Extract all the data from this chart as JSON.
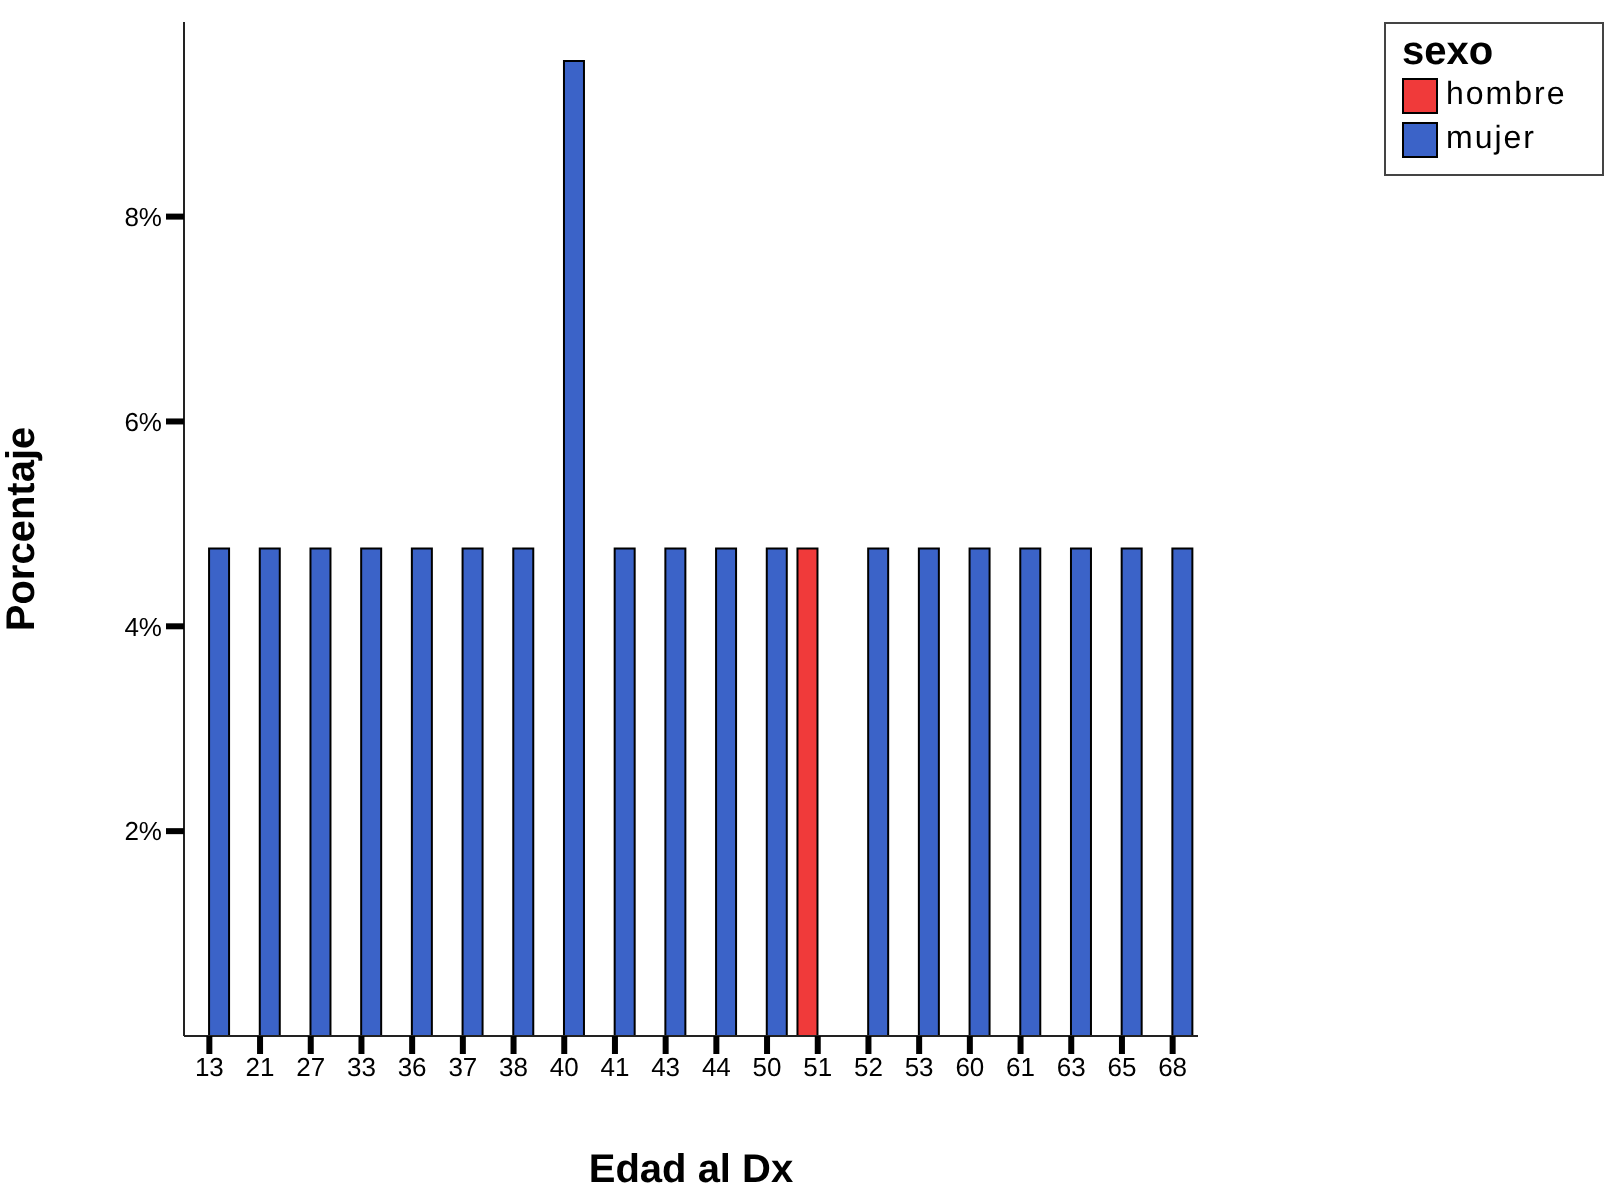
{
  "chart_data": {
    "type": "bar",
    "xlabel": "Edad al Dx",
    "ylabel": "Porcentaje",
    "legend_title": "sexo",
    "legend": "top right",
    "grid": false,
    "categories": [
      "13",
      "21",
      "27",
      "33",
      "36",
      "37",
      "38",
      "40",
      "41",
      "43",
      "44",
      "50",
      "51",
      "52",
      "53",
      "60",
      "61",
      "63",
      "65",
      "68"
    ],
    "series": [
      {
        "name": "hombre",
        "color": "#f03a3a",
        "values": [
          null,
          null,
          null,
          null,
          null,
          null,
          null,
          null,
          null,
          null,
          null,
          null,
          4.76,
          null,
          null,
          null,
          null,
          null,
          null,
          null
        ]
      },
      {
        "name": "mujer",
        "color": "#3b63c8",
        "values": [
          4.76,
          4.76,
          4.76,
          4.76,
          4.76,
          4.76,
          4.76,
          9.52,
          4.76,
          4.76,
          4.76,
          4.76,
          null,
          4.76,
          4.76,
          4.76,
          4.76,
          4.76,
          4.76,
          4.76
        ]
      }
    ],
    "ylim": [
      0,
      9.9
    ],
    "yticks": [
      {
        "value": 2,
        "label": "2%"
      },
      {
        "value": 4,
        "label": "4%"
      },
      {
        "value": 6,
        "label": "6%"
      },
      {
        "value": 8,
        "label": "8%"
      }
    ]
  }
}
